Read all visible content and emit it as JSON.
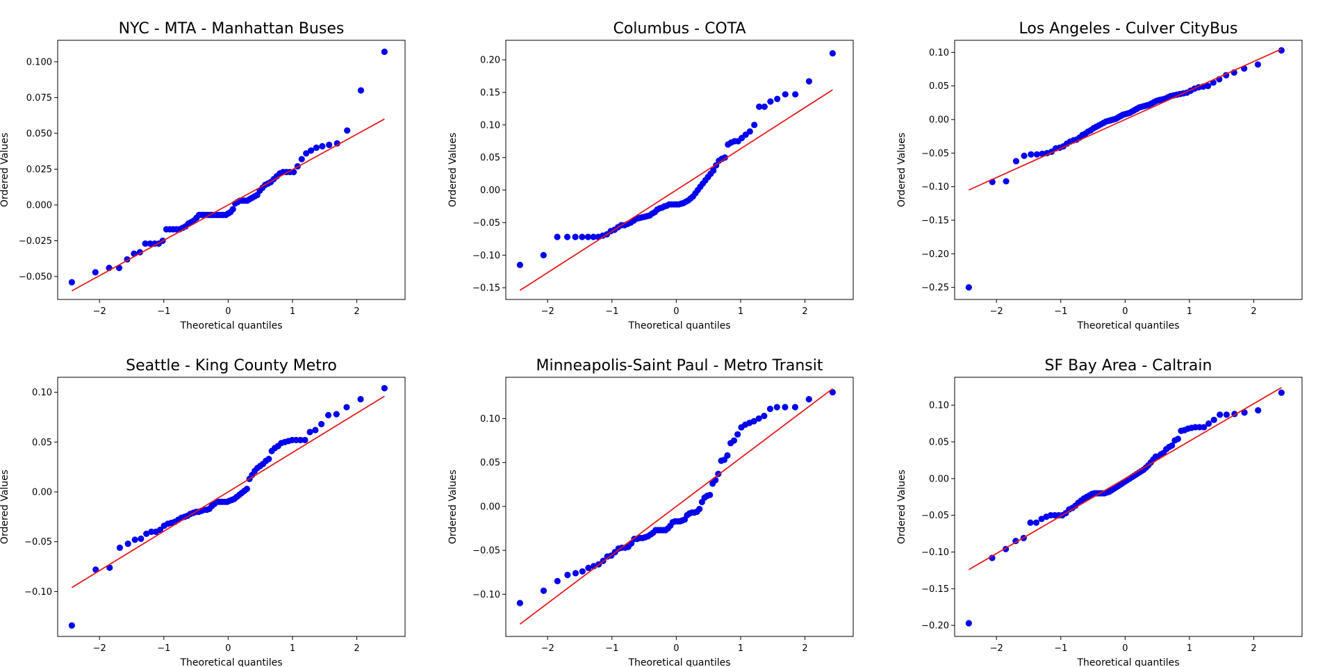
{
  "chart_data": [
    {
      "type": "scatter",
      "title": "NYC - MTA - Manhattan Buses",
      "xlabel": "Theoretical quantiles",
      "ylabel": "Ordered Values",
      "xlim": [
        -2.65,
        2.75
      ],
      "ylim": [
        -0.066,
        0.115
      ],
      "xticks": [
        -2,
        -1,
        0,
        1,
        2
      ],
      "xtick_labels": [
        "−2",
        "−1",
        "0",
        "1",
        "2"
      ],
      "yticks": [
        -0.05,
        -0.025,
        0.0,
        0.025,
        0.05,
        0.075,
        0.1
      ],
      "ytick_labels": [
        "−0.050",
        "−0.025",
        "0.000",
        "0.025",
        "0.050",
        "0.075",
        "0.100"
      ],
      "fit_line": {
        "x": [
          -2.43,
          2.43
        ],
        "y": [
          -0.06,
          0.06
        ]
      },
      "points": {
        "x_min": -2.43,
        "x_max": 2.43,
        "y": [
          -0.054,
          -0.047,
          -0.044,
          -0.044,
          -0.038,
          -0.034,
          -0.033,
          -0.027,
          -0.027,
          -0.027,
          -0.027,
          -0.025,
          -0.017,
          -0.017,
          -0.017,
          -0.017,
          -0.017,
          -0.016,
          -0.015,
          -0.013,
          -0.012,
          -0.011,
          -0.009,
          -0.007,
          -0.007,
          -0.007,
          -0.007,
          -0.007,
          -0.007,
          -0.007,
          -0.007,
          -0.007,
          -0.007,
          -0.007,
          -0.007,
          -0.006,
          -0.005,
          -0.003,
          0.001,
          0.002,
          0.003,
          0.003,
          0.003,
          0.003,
          0.004,
          0.005,
          0.006,
          0.007,
          0.01,
          0.012,
          0.014,
          0.015,
          0.016,
          0.018,
          0.02,
          0.022,
          0.023,
          0.023,
          0.023,
          0.023,
          0.027,
          0.032,
          0.036,
          0.038,
          0.04,
          0.041,
          0.042,
          0.043,
          0.052,
          0.08,
          0.107
        ]
      }
    },
    {
      "type": "scatter",
      "title": "Columbus - COTA",
      "xlabel": "Theoretical quantiles",
      "ylabel": "Ordered Values",
      "xlim": [
        -2.65,
        2.75
      ],
      "ylim": [
        -0.168,
        0.23
      ],
      "xticks": [
        -2,
        -1,
        0,
        1,
        2
      ],
      "xtick_labels": [
        "−2",
        "−1",
        "0",
        "1",
        "2"
      ],
      "yticks": [
        -0.15,
        -0.1,
        -0.05,
        0.0,
        0.05,
        0.1,
        0.15,
        0.2
      ],
      "ytick_labels": [
        "−0.15",
        "−0.10",
        "−0.05",
        "0.00",
        "0.05",
        "0.10",
        "0.15",
        "0.20"
      ],
      "fit_line": {
        "x": [
          -2.43,
          2.43
        ],
        "y": [
          -0.154,
          0.154
        ]
      },
      "points": {
        "x_min": -2.43,
        "x_max": 2.43,
        "y": [
          -0.115,
          -0.1,
          -0.072,
          -0.072,
          -0.072,
          -0.072,
          -0.072,
          -0.072,
          -0.072,
          -0.07,
          -0.068,
          -0.063,
          -0.061,
          -0.057,
          -0.054,
          -0.054,
          -0.052,
          -0.05,
          -0.047,
          -0.044,
          -0.043,
          -0.042,
          -0.041,
          -0.04,
          -0.039,
          -0.036,
          -0.034,
          -0.03,
          -0.028,
          -0.027,
          -0.025,
          -0.024,
          -0.022,
          -0.022,
          -0.022,
          -0.022,
          -0.022,
          -0.021,
          -0.02,
          -0.018,
          -0.016,
          -0.013,
          -0.01,
          -0.005,
          0.0,
          0.005,
          0.01,
          0.015,
          0.02,
          0.025,
          0.03,
          0.038,
          0.045,
          0.048,
          0.05,
          0.07,
          0.073,
          0.075,
          0.075,
          0.08,
          0.085,
          0.09,
          0.1,
          0.128,
          0.128,
          0.136,
          0.14,
          0.147,
          0.147,
          0.167,
          0.21
        ]
      }
    },
    {
      "type": "scatter",
      "title": "Los Angeles - Culver CityBus",
      "xlabel": "Theoretical quantiles",
      "ylabel": "Ordered Values",
      "xlim": [
        -2.65,
        2.75
      ],
      "ylim": [
        -0.268,
        0.118
      ],
      "xticks": [
        -2,
        -1,
        0,
        1,
        2
      ],
      "xtick_labels": [
        "−2",
        "−1",
        "0",
        "1",
        "2"
      ],
      "yticks": [
        -0.25,
        -0.2,
        -0.15,
        -0.1,
        -0.05,
        0.0,
        0.05,
        0.1
      ],
      "ytick_labels": [
        "−0.25",
        "−0.20",
        "−0.15",
        "−0.10",
        "−0.05",
        "0.00",
        "0.05",
        "0.10"
      ],
      "fit_line": {
        "x": [
          -2.43,
          2.43
        ],
        "y": [
          -0.105,
          0.105
        ]
      },
      "points": {
        "x_min": -2.43,
        "x_max": 2.43,
        "y": [
          -0.25,
          -0.093,
          -0.092,
          -0.062,
          -0.054,
          -0.052,
          -0.052,
          -0.051,
          -0.05,
          -0.048,
          -0.043,
          -0.042,
          -0.04,
          -0.036,
          -0.033,
          -0.031,
          -0.03,
          -0.027,
          -0.023,
          -0.021,
          -0.018,
          -0.016,
          -0.013,
          -0.011,
          -0.009,
          -0.007,
          -0.005,
          -0.003,
          -0.002,
          -0.001,
          0.0,
          0.001,
          0.003,
          0.005,
          0.007,
          0.008,
          0.009,
          0.01,
          0.012,
          0.014,
          0.016,
          0.018,
          0.019,
          0.02,
          0.021,
          0.022,
          0.024,
          0.026,
          0.028,
          0.029,
          0.03,
          0.031,
          0.033,
          0.035,
          0.036,
          0.037,
          0.038,
          0.039,
          0.04,
          0.043,
          0.046,
          0.048,
          0.049,
          0.05,
          0.055,
          0.06,
          0.066,
          0.07,
          0.076,
          0.082,
          0.103
        ]
      }
    },
    {
      "type": "scatter",
      "title": "Seattle - King County Metro",
      "xlabel": "Theoretical quantiles",
      "ylabel": "Ordered Values",
      "xlim": [
        -2.65,
        2.75
      ],
      "ylim": [
        -0.145,
        0.115
      ],
      "xticks": [
        -2,
        -1,
        0,
        1,
        2
      ],
      "xtick_labels": [
        "−2",
        "−1",
        "0",
        "1",
        "2"
      ],
      "yticks": [
        -0.1,
        -0.05,
        0.0,
        0.05,
        0.1
      ],
      "ytick_labels": [
        "−0.10",
        "−0.05",
        "0.00",
        "0.05",
        "0.10"
      ],
      "fit_line": {
        "x": [
          -2.43,
          2.43
        ],
        "y": [
          -0.096,
          0.096
        ]
      },
      "points": {
        "x_min": -2.43,
        "x_max": 2.43,
        "y": [
          -0.134,
          -0.078,
          -0.076,
          -0.056,
          -0.052,
          -0.048,
          -0.047,
          -0.042,
          -0.04,
          -0.04,
          -0.038,
          -0.034,
          -0.032,
          -0.031,
          -0.03,
          -0.028,
          -0.026,
          -0.025,
          -0.024,
          -0.022,
          -0.021,
          -0.02,
          -0.02,
          -0.019,
          -0.018,
          -0.018,
          -0.017,
          -0.014,
          -0.012,
          -0.01,
          -0.01,
          -0.01,
          -0.01,
          -0.01,
          -0.009,
          -0.008,
          -0.007,
          -0.005,
          -0.003,
          -0.001,
          0.001,
          0.003,
          0.013,
          0.017,
          0.021,
          0.024,
          0.026,
          0.028,
          0.031,
          0.033,
          0.041,
          0.044,
          0.046,
          0.049,
          0.05,
          0.051,
          0.052,
          0.052,
          0.052,
          0.052,
          0.06,
          0.062,
          0.068,
          0.077,
          0.078,
          0.085,
          0.093,
          0.104
        ]
      }
    },
    {
      "type": "scatter",
      "title": "Minneapolis-Saint Paul - Metro Transit",
      "xlabel": "Theoretical quantiles",
      "ylabel": "Ordered Values",
      "xlim": [
        -2.65,
        2.75
      ],
      "ylim": [
        -0.148,
        0.147
      ],
      "xticks": [
        -2,
        -1,
        0,
        1,
        2
      ],
      "xtick_labels": [
        "−2",
        "−1",
        "0",
        "1",
        "2"
      ],
      "yticks": [
        -0.1,
        -0.05,
        0.0,
        0.05,
        0.1
      ],
      "ytick_labels": [
        "−0.10",
        "−0.05",
        "0.00",
        "0.05",
        "0.10"
      ],
      "fit_line": {
        "x": [
          -2.43,
          2.43
        ],
        "y": [
          -0.134,
          0.134
        ]
      },
      "points": {
        "x_min": -2.43,
        "x_max": 2.43,
        "y": [
          -0.11,
          -0.096,
          -0.085,
          -0.078,
          -0.076,
          -0.074,
          -0.07,
          -0.068,
          -0.066,
          -0.062,
          -0.057,
          -0.056,
          -0.052,
          -0.048,
          -0.047,
          -0.047,
          -0.046,
          -0.042,
          -0.037,
          -0.037,
          -0.036,
          -0.036,
          -0.035,
          -0.034,
          -0.032,
          -0.03,
          -0.027,
          -0.027,
          -0.027,
          -0.027,
          -0.027,
          -0.025,
          -0.022,
          -0.018,
          -0.017,
          -0.017,
          -0.017,
          -0.016,
          -0.015,
          -0.01,
          -0.008,
          -0.007,
          -0.007,
          -0.006,
          -0.003,
          0.005,
          0.01,
          0.012,
          0.013,
          0.026,
          0.03,
          0.037,
          0.052,
          0.053,
          0.058,
          0.072,
          0.075,
          0.082,
          0.09,
          0.093,
          0.095,
          0.097,
          0.1,
          0.103,
          0.111,
          0.113,
          0.113,
          0.113,
          0.122,
          0.13
        ]
      }
    },
    {
      "type": "scatter",
      "title": "SF Bay Area - Caltrain",
      "xlabel": "Theoretical quantiles",
      "ylabel": "Ordered Values",
      "xlim": [
        -2.65,
        2.75
      ],
      "ylim": [
        -0.215,
        0.138
      ],
      "xticks": [
        -2,
        -1,
        0,
        1,
        2
      ],
      "xtick_labels": [
        "−2",
        "−1",
        "0",
        "1",
        "2"
      ],
      "yticks": [
        -0.2,
        -0.15,
        -0.1,
        -0.05,
        0.0,
        0.05,
        0.1
      ],
      "ytick_labels": [
        "−0.20",
        "−0.15",
        "−0.10",
        "−0.05",
        "0.00",
        "0.05",
        "0.10"
      ],
      "fit_line": {
        "x": [
          -2.43,
          2.43
        ],
        "y": [
          -0.124,
          0.124
        ]
      },
      "points": {
        "x_min": -2.43,
        "x_max": 2.43,
        "y": [
          -0.197,
          -0.108,
          -0.096,
          -0.085,
          -0.081,
          -0.06,
          -0.06,
          -0.055,
          -0.052,
          -0.05,
          -0.05,
          -0.05,
          -0.05,
          -0.047,
          -0.042,
          -0.04,
          -0.037,
          -0.033,
          -0.03,
          -0.027,
          -0.025,
          -0.023,
          -0.021,
          -0.02,
          -0.02,
          -0.02,
          -0.02,
          -0.02,
          -0.019,
          -0.018,
          -0.016,
          -0.014,
          -0.012,
          -0.01,
          -0.008,
          -0.006,
          -0.004,
          -0.002,
          0.0,
          0.002,
          0.004,
          0.006,
          0.008,
          0.01,
          0.012,
          0.015,
          0.018,
          0.022,
          0.026,
          0.03,
          0.03,
          0.033,
          0.035,
          0.04,
          0.043,
          0.045,
          0.052,
          0.054,
          0.065,
          0.066,
          0.068,
          0.069,
          0.07,
          0.07,
          0.07,
          0.075,
          0.08,
          0.087,
          0.087,
          0.088,
          0.09,
          0.093,
          0.117
        ]
      }
    }
  ]
}
